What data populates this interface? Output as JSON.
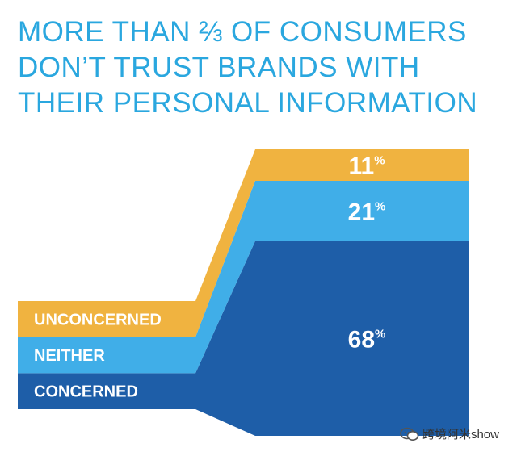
{
  "headline": {
    "lines": [
      "MORE THAN ⅔ OF CONSUMERS",
      "DON’T TRUST BRANDS WITH",
      "THEIR PERSONAL INFORMATION"
    ]
  },
  "watermark": {
    "text": "跨境阿米show",
    "icon": "wechat-icon"
  },
  "colors": {
    "headline": "#2aa7df",
    "unconcerned": "#f0b340",
    "neither": "#40aee8",
    "concerned": "#1e5ea8"
  },
  "chart_data": {
    "type": "area",
    "title": "",
    "xlabel": "",
    "ylabel": "",
    "ylim": [
      0,
      100
    ],
    "unit": "%",
    "series": [
      {
        "name": "CONCERNED",
        "value": 68,
        "label": "68",
        "color": "#1e5ea8"
      },
      {
        "name": "NEITHER",
        "value": 21,
        "label": "21",
        "color": "#40aee8"
      },
      {
        "name": "UNCONCERNED",
        "value": 11,
        "label": "11",
        "color": "#f0b340"
      }
    ],
    "legend": "left, stacked as labeled bands"
  }
}
